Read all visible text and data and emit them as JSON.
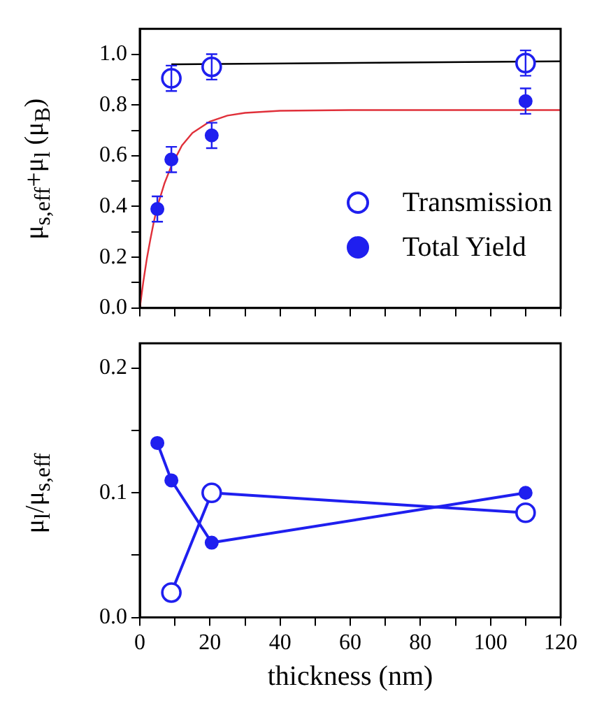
{
  "chart_data": [
    {
      "type": "scatter",
      "ylabel": "μ$_{s,eff}$+μ$_{l}$ (μ$_{B}$)",
      "xlim": [
        0,
        120
      ],
      "ylim": [
        0,
        1.1
      ],
      "xticks": [
        0,
        {
          "value": 10,
          "label": null
        },
        20,
        {
          "value": 30,
          "label": null
        },
        40,
        {
          "value": 50,
          "label": null
        },
        60,
        {
          "value": 70,
          "label": null
        },
        80,
        {
          "value": 90,
          "label": null
        },
        100,
        {
          "value": 110,
          "label": null
        },
        120
      ],
      "yticks": [
        {
          "value": 0,
          "label": "0.0"
        },
        {
          "value": 0.1,
          "label": null
        },
        {
          "value": 0.2,
          "label": "0.2"
        },
        {
          "value": 0.3,
          "label": null
        },
        {
          "value": 0.4,
          "label": "0.4"
        },
        {
          "value": 0.5,
          "label": null
        },
        {
          "value": 0.6,
          "label": "0.6"
        },
        {
          "value": 0.7,
          "label": null
        },
        {
          "value": 0.8,
          "label": "0.8"
        },
        {
          "value": 0.9,
          "label": null
        },
        {
          "value": 1.0,
          "label": "1.0"
        }
      ],
      "tick_labels": "y",
      "grid": false,
      "legend": "bottom right",
      "marker": "circle",
      "series": [
        {
          "name": "Transmission",
          "color": "#1f1fef",
          "x": [
            9,
            20.5,
            110
          ],
          "values": [
            0.905,
            0.95,
            0.965
          ],
          "errors": [
            0.05,
            0.05,
            0.05
          ]
        },
        {
          "name": "Total Yield",
          "color": "#1f1fef",
          "x": [
            5,
            9,
            20.5,
            110
          ],
          "values": [
            0.39,
            0.585,
            0.68,
            0.815
          ],
          "errors": [
            0.05,
            0.05,
            0.05,
            0.05
          ]
        },
        {
          "type": "line",
          "marker": "none",
          "color": "#000000",
          "x": [
            9,
            120
          ],
          "values": [
            0.96,
            0.972
          ]
        },
        {
          "type": "line",
          "marker": "none",
          "color": "#e0303a",
          "x": [
            0,
            1,
            2,
            3,
            4,
            5,
            7,
            9,
            12,
            15,
            20,
            25,
            30,
            40,
            60,
            120
          ],
          "values": [
            0,
            0.104,
            0.194,
            0.27,
            0.34,
            0.4,
            0.49,
            0.56,
            0.64,
            0.69,
            0.735,
            0.758,
            0.769,
            0.777,
            0.78,
            0.78
          ]
        }
      ]
    },
    {
      "type": "line",
      "xlabel": "thickness (nm)",
      "ylabel": "μ$_{l}$/μ$_{s,eff}$",
      "xlim": [
        0,
        120
      ],
      "ylim": [
        0,
        0.22
      ],
      "xticks": [
        0,
        {
          "value": 10,
          "label": null
        },
        20,
        {
          "value": 30,
          "label": null
        },
        40,
        {
          "value": 50,
          "label": null
        },
        60,
        {
          "value": 70,
          "label": null
        },
        80,
        {
          "value": 90,
          "label": null
        },
        100,
        {
          "value": 110,
          "label": null
        },
        120
      ],
      "yticks": [
        {
          "value": 0,
          "label": "0.0"
        },
        {
          "value": 0.05,
          "label": null
        },
        {
          "value": 0.1,
          "label": "0.1"
        },
        {
          "value": 0.15,
          "label": null
        },
        {
          "value": 0.2,
          "label": "0.2"
        }
      ],
      "grid": false,
      "marker": "circle",
      "line_style": "solid",
      "series": [
        {
          "color": "#1f1fef",
          "x": [
            9,
            20.5,
            110
          ],
          "values": [
            0.02,
            0.1,
            0.084
          ]
        },
        {
          "color": "#1f1fef",
          "x": [
            5,
            9,
            20.5,
            110
          ],
          "values": [
            0.14,
            0.11,
            0.06,
            0.1
          ]
        }
      ]
    }
  ]
}
